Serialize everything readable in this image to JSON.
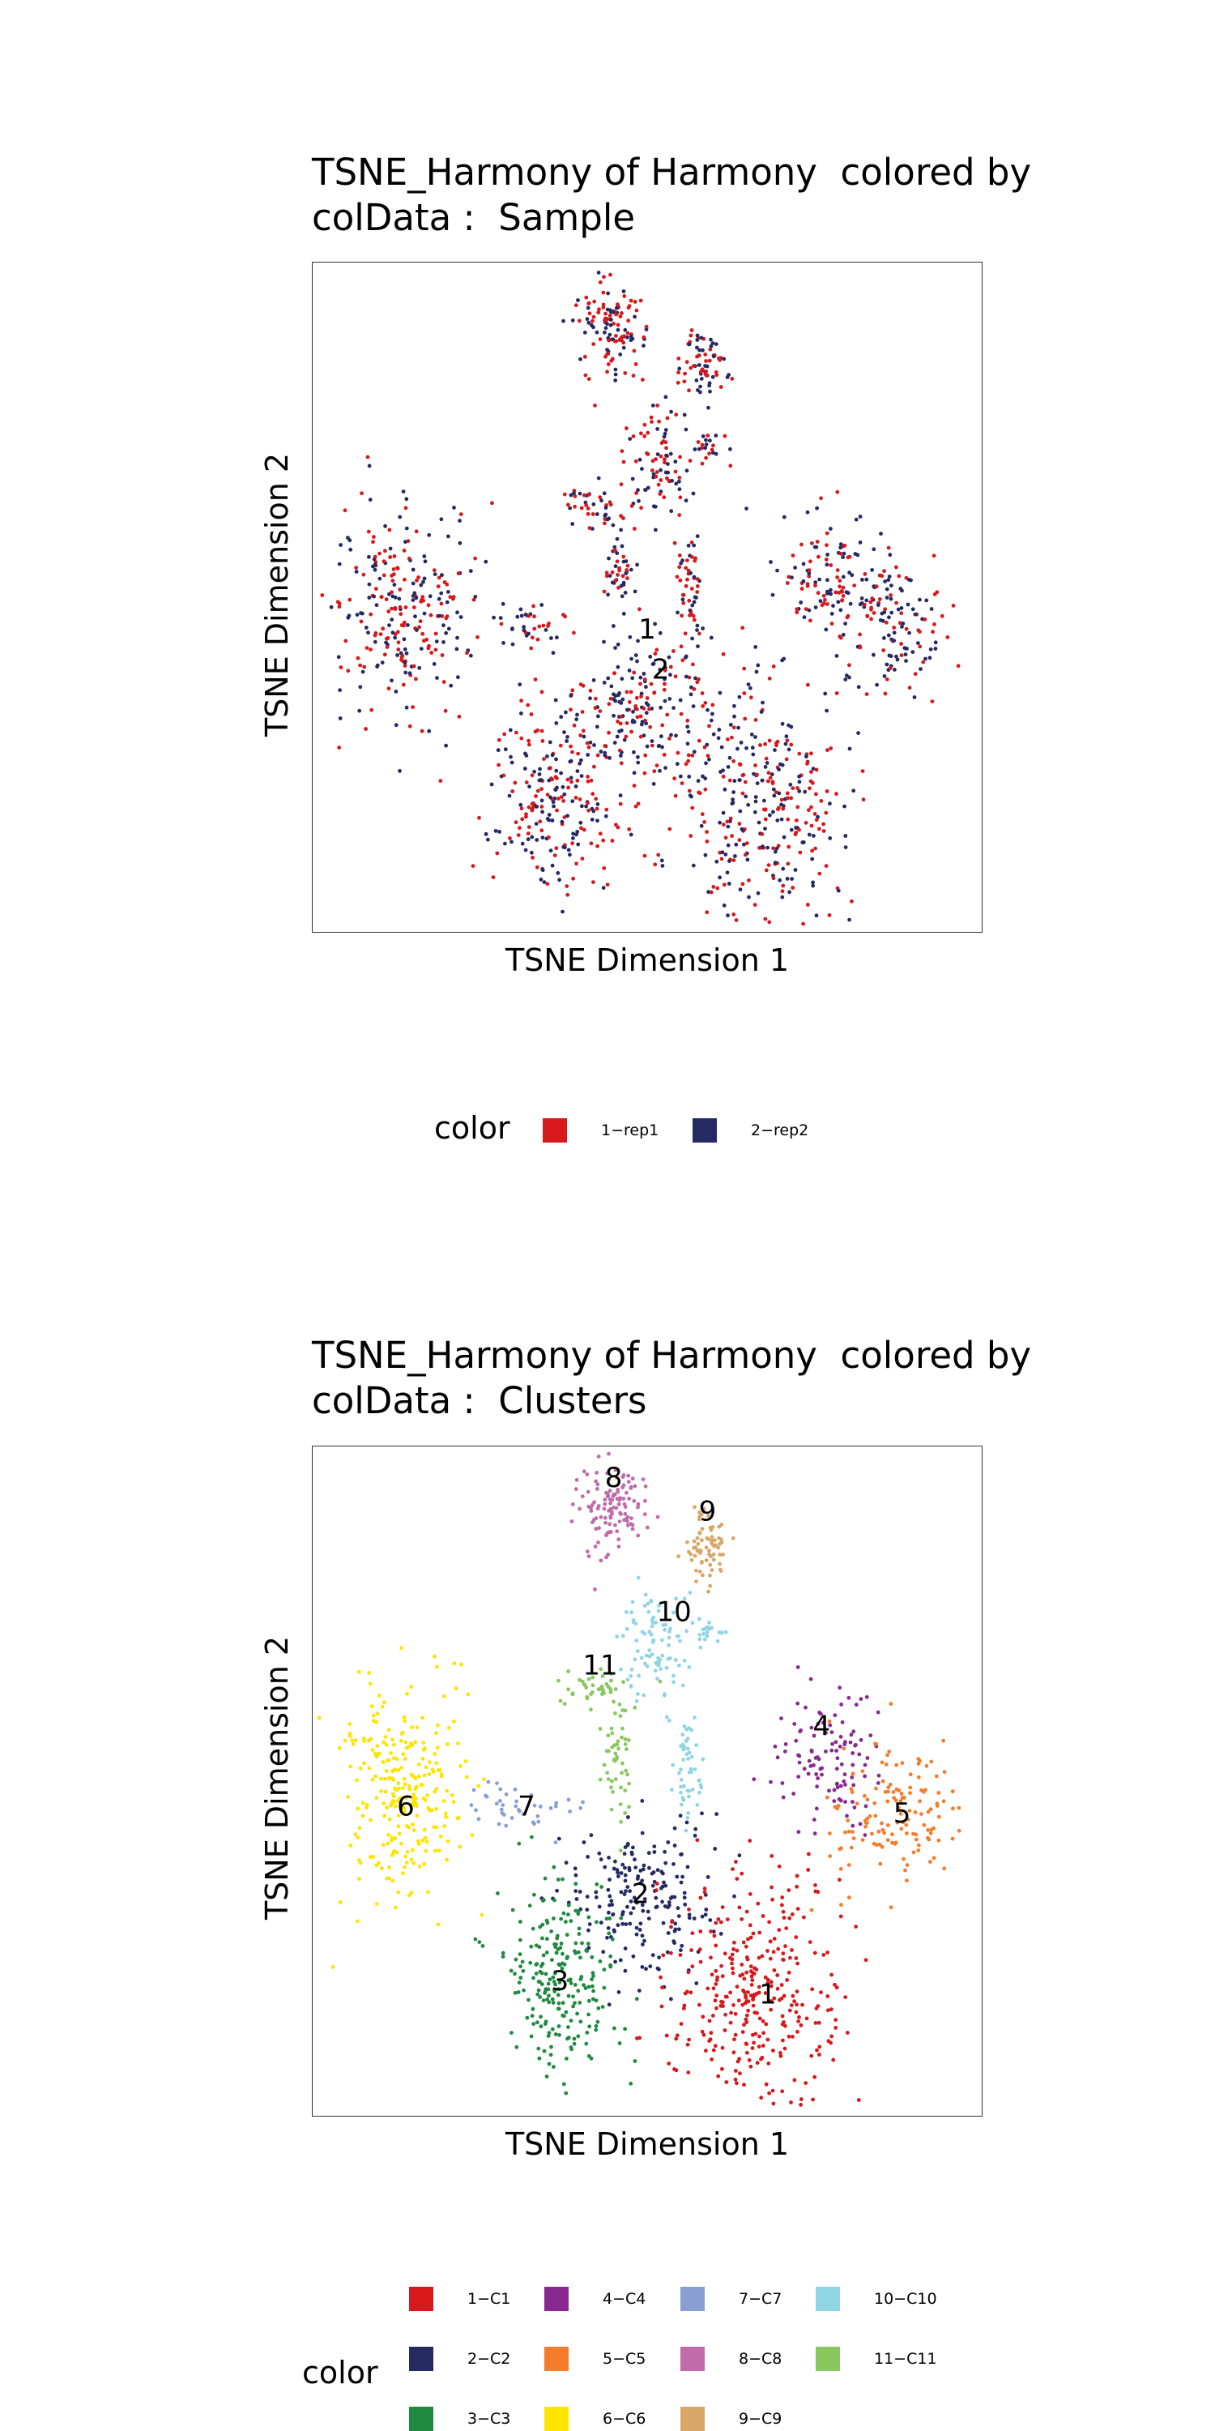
{
  "legend_title": "color",
  "chart_data": [
    {
      "type": "scatter",
      "title_lines": [
        "TSNE_Harmony of Harmony  colored by",
        "colData :  Sample"
      ],
      "xlabel": "TSNE Dimension 1",
      "ylabel": "TSNE Dimension 2",
      "grid": false,
      "legend_position": "bottom",
      "series": [
        {
          "name": "1−rep1",
          "color": "#d7191c"
        },
        {
          "name": "2−rep2",
          "color": "#252a63"
        }
      ],
      "cluster_labels": [
        {
          "text": "1",
          "x": 0.5,
          "y": 0.45
        },
        {
          "text": "2",
          "x": 0.52,
          "y": 0.39
        }
      ]
    },
    {
      "type": "scatter",
      "title_lines": [
        "TSNE_Harmony of Harmony  colored by",
        "colData :  Clusters"
      ],
      "xlabel": "TSNE Dimension 1",
      "ylabel": "TSNE Dimension 2",
      "grid": false,
      "legend_position": "bottom",
      "series": [
        {
          "name": "1−C1",
          "color": "#d7191c"
        },
        {
          "name": "2−C2",
          "color": "#252a63"
        },
        {
          "name": "3−C3",
          "color": "#208a42"
        },
        {
          "name": "4−C4",
          "color": "#89288f"
        },
        {
          "name": "5−C5",
          "color": "#f47d2b"
        },
        {
          "name": "6−C6",
          "color": "#fee500"
        },
        {
          "name": "7−C7",
          "color": "#8a9fd1"
        },
        {
          "name": "8−C8",
          "color": "#c06cab"
        },
        {
          "name": "9−C9",
          "color": "#d8a767"
        },
        {
          "name": "10−C10",
          "color": "#90d5e4"
        },
        {
          "name": "11−C11",
          "color": "#89c75f"
        }
      ],
      "cluster_labels": [
        {
          "text": "8",
          "x": 0.45,
          "y": 0.95
        },
        {
          "text": "9",
          "x": 0.59,
          "y": 0.9
        },
        {
          "text": "10",
          "x": 0.54,
          "y": 0.75
        },
        {
          "text": "11",
          "x": 0.43,
          "y": 0.67
        },
        {
          "text": "4",
          "x": 0.76,
          "y": 0.58
        },
        {
          "text": "6",
          "x": 0.14,
          "y": 0.46
        },
        {
          "text": "7",
          "x": 0.32,
          "y": 0.46
        },
        {
          "text": "5",
          "x": 0.88,
          "y": 0.45
        },
        {
          "text": "2",
          "x": 0.49,
          "y": 0.33
        },
        {
          "text": "3",
          "x": 0.37,
          "y": 0.2
        },
        {
          "text": "1",
          "x": 0.68,
          "y": 0.18
        }
      ]
    }
  ]
}
